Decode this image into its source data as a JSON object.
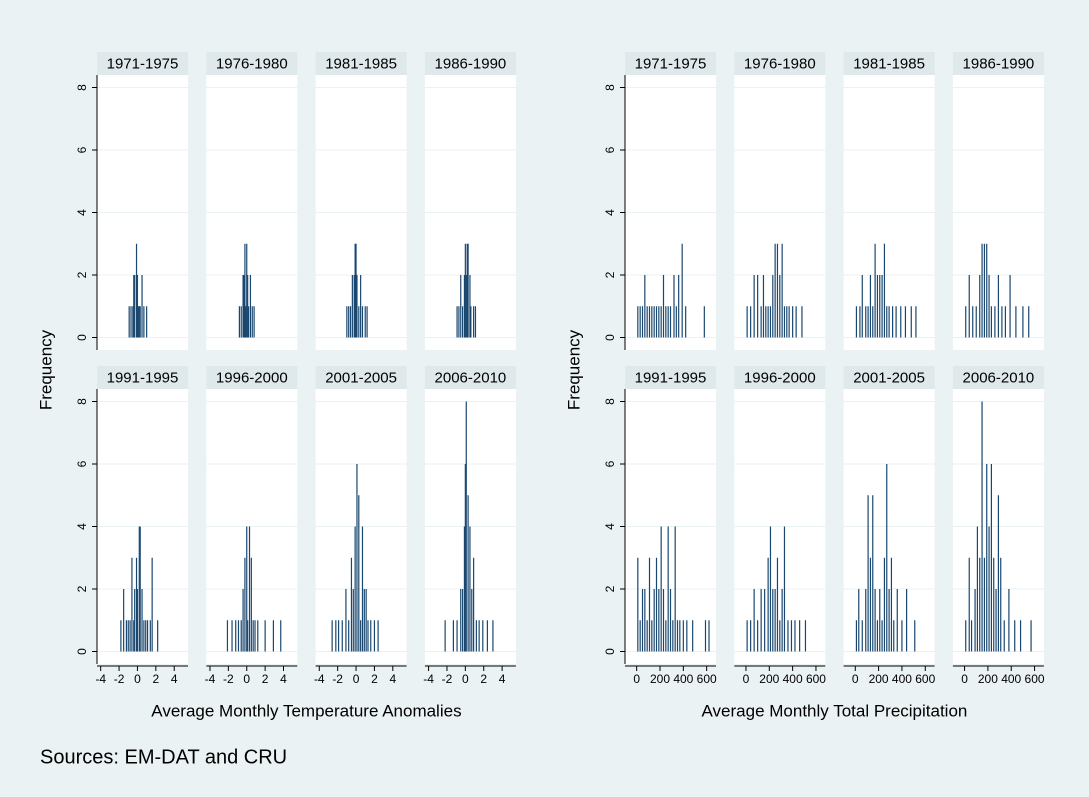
{
  "chart_data": [
    {
      "type": "spike",
      "ylabel": "Frequency",
      "xlabel": "Average Monthly Temperature Anomalies",
      "xlim": [
        -4.4,
        5.5
      ],
      "xticks": [
        -4,
        -2,
        0,
        2,
        4
      ],
      "ylim": [
        -0.4,
        8.4
      ],
      "yticks": [
        0,
        2,
        4,
        6,
        8
      ],
      "grid": true,
      "color": "#1a476f",
      "panels": [
        {
          "title": "1971-1975",
          "x": [
            -0.9,
            -0.7,
            -0.5,
            -0.4,
            -0.3,
            -0.1,
            0,
            0.1,
            0.2,
            0.3,
            0.5,
            0.7,
            1.0
          ],
          "values": [
            1,
            1,
            1,
            2,
            2,
            3,
            2,
            1,
            1,
            1,
            2,
            1,
            1
          ]
        },
        {
          "title": "1976-1980",
          "x": [
            -0.8,
            -0.6,
            -0.4,
            -0.3,
            -0.2,
            -0.1,
            0,
            0.1,
            0.2,
            0.4,
            0.6,
            0.8
          ],
          "values": [
            1,
            1,
            2,
            2,
            3,
            1,
            3,
            2,
            1,
            2,
            1,
            1
          ]
        },
        {
          "title": "1981-1985",
          "x": [
            -1.0,
            -0.8,
            -0.6,
            -0.4,
            -0.2,
            -0.1,
            0,
            0.1,
            0.3,
            0.5,
            0.7,
            1.0,
            1.2
          ],
          "values": [
            1,
            1,
            1,
            2,
            2,
            3,
            3,
            2,
            1,
            2,
            1,
            1,
            1
          ]
        },
        {
          "title": "1986-1990",
          "x": [
            -0.9,
            -0.7,
            -0.5,
            -0.3,
            -0.1,
            0,
            0.1,
            0.2,
            0.3,
            0.5,
            0.6,
            0.9,
            1.1
          ],
          "values": [
            1,
            1,
            2,
            1,
            2,
            3,
            2,
            3,
            3,
            2,
            1,
            1,
            1
          ]
        },
        {
          "title": "1991-1995",
          "x": [
            -1.8,
            -1.5,
            -1.2,
            -1.0,
            -0.8,
            -0.6,
            -0.4,
            -0.3,
            -0.1,
            0,
            0.2,
            0.3,
            0.5,
            0.7,
            0.9,
            1.1,
            1.4,
            1.6,
            2.2
          ],
          "values": [
            1,
            2,
            1,
            1,
            1,
            3,
            1,
            2,
            3,
            2,
            4,
            4,
            2,
            1,
            1,
            1,
            1,
            3,
            1
          ]
        },
        {
          "title": "1996-2000",
          "x": [
            -2.1,
            -1.6,
            -1.2,
            -0.9,
            -0.6,
            -0.4,
            -0.2,
            0,
            0.1,
            0.3,
            0.5,
            0.7,
            0.9,
            1.2,
            2.0,
            2.9,
            3.7
          ],
          "values": [
            1,
            1,
            1,
            1,
            1,
            2,
            3,
            4,
            1,
            4,
            3,
            1,
            1,
            1,
            1,
            1,
            1
          ]
        },
        {
          "title": "2001-2005",
          "x": [
            -2.6,
            -2.2,
            -1.9,
            -1.5,
            -1.1,
            -0.8,
            -0.5,
            -0.3,
            -0.1,
            0.1,
            0.3,
            0.5,
            0.7,
            0.9,
            1.1,
            1.3,
            1.6,
            2.0,
            2.4
          ],
          "values": [
            1,
            1,
            1,
            1,
            2,
            1,
            3,
            2,
            4,
            6,
            5,
            1,
            4,
            2,
            2,
            1,
            1,
            1,
            1
          ]
        },
        {
          "title": "2006-2010",
          "x": [
            -2.2,
            -1.3,
            -0.9,
            -0.5,
            -0.3,
            -0.1,
            0,
            0.1,
            0.3,
            0.5,
            0.7,
            0.9,
            1.2,
            1.5,
            1.9,
            2.4,
            3.0
          ],
          "values": [
            1,
            1,
            1,
            2,
            2,
            4,
            6,
            8,
            5,
            4,
            2,
            3,
            1,
            1,
            1,
            1,
            1
          ]
        }
      ]
    },
    {
      "type": "spike",
      "ylabel": "Frequency",
      "xlabel": "Average Monthly Total Precipitation",
      "xlim": [
        -100,
        680
      ],
      "xticks": [
        0,
        200,
        400,
        600
      ],
      "ylim": [
        -0.4,
        8.4
      ],
      "yticks": [
        0,
        2,
        4,
        6,
        8
      ],
      "grid": true,
      "color": "#1a476f",
      "panels": [
        {
          "title": "1971-1975",
          "x": [
            10,
            30,
            50,
            70,
            90,
            110,
            130,
            150,
            170,
            190,
            210,
            230,
            250,
            270,
            290,
            320,
            340,
            360,
            390,
            420,
            580
          ],
          "values": [
            1,
            1,
            1,
            2,
            1,
            1,
            1,
            1,
            1,
            1,
            1,
            2,
            1,
            1,
            1,
            2,
            1,
            2,
            3,
            1,
            1
          ]
        },
        {
          "title": "1976-1980",
          "x": [
            10,
            40,
            70,
            100,
            130,
            150,
            170,
            190,
            210,
            230,
            250,
            270,
            290,
            310,
            330,
            350,
            370,
            400,
            430,
            480
          ],
          "values": [
            1,
            1,
            2,
            2,
            1,
            2,
            1,
            1,
            1,
            2,
            3,
            3,
            2,
            3,
            1,
            1,
            1,
            1,
            1,
            1
          ]
        },
        {
          "title": "1981-1985",
          "x": [
            10,
            40,
            60,
            90,
            110,
            130,
            150,
            170,
            190,
            210,
            230,
            250,
            270,
            290,
            320,
            350,
            390,
            430,
            480,
            520
          ],
          "values": [
            1,
            1,
            2,
            1,
            1,
            2,
            1,
            3,
            2,
            2,
            2,
            3,
            1,
            1,
            1,
            1,
            1,
            1,
            1,
            1
          ]
        },
        {
          "title": "1986-1990",
          "x": [
            10,
            40,
            70,
            100,
            130,
            150,
            170,
            190,
            210,
            230,
            260,
            290,
            320,
            350,
            390,
            440,
            500,
            550
          ],
          "values": [
            1,
            2,
            1,
            1,
            2,
            3,
            3,
            3,
            2,
            1,
            1,
            2,
            1,
            1,
            2,
            1,
            1,
            1
          ]
        },
        {
          "title": "1991-1995",
          "x": [
            10,
            30,
            50,
            70,
            90,
            110,
            130,
            150,
            170,
            190,
            210,
            230,
            250,
            270,
            290,
            310,
            330,
            350,
            370,
            400,
            430,
            480,
            590,
            620
          ],
          "values": [
            3,
            1,
            2,
            2,
            1,
            3,
            1,
            2,
            3,
            2,
            4,
            2,
            1,
            4,
            2,
            1,
            4,
            1,
            1,
            1,
            1,
            1,
            1,
            1
          ]
        },
        {
          "title": "1996-2000",
          "x": [
            10,
            40,
            70,
            100,
            130,
            160,
            190,
            210,
            230,
            250,
            270,
            290,
            310,
            330,
            360,
            390,
            420,
            460,
            510
          ],
          "values": [
            1,
            1,
            2,
            1,
            2,
            2,
            3,
            4,
            2,
            2,
            3,
            1,
            2,
            4,
            1,
            1,
            1,
            1,
            1
          ]
        },
        {
          "title": "2001-2005",
          "x": [
            10,
            30,
            60,
            90,
            110,
            130,
            150,
            170,
            190,
            210,
            230,
            250,
            270,
            290,
            310,
            330,
            360,
            400,
            440,
            510
          ],
          "values": [
            1,
            2,
            1,
            2,
            5,
            3,
            5,
            2,
            1,
            2,
            1,
            3,
            6,
            2,
            3,
            1,
            2,
            1,
            2,
            1
          ]
        },
        {
          "title": "2006-2010",
          "x": [
            10,
            40,
            60,
            90,
            110,
            130,
            150,
            170,
            190,
            210,
            230,
            250,
            270,
            290,
            310,
            340,
            380,
            430,
            480,
            570
          ],
          "values": [
            1,
            3,
            1,
            2,
            4,
            3,
            8,
            3,
            6,
            4,
            6,
            3,
            2,
            5,
            3,
            1,
            2,
            1,
            1,
            1
          ]
        }
      ]
    }
  ],
  "note": "Sources: EM-DAT and CRU"
}
